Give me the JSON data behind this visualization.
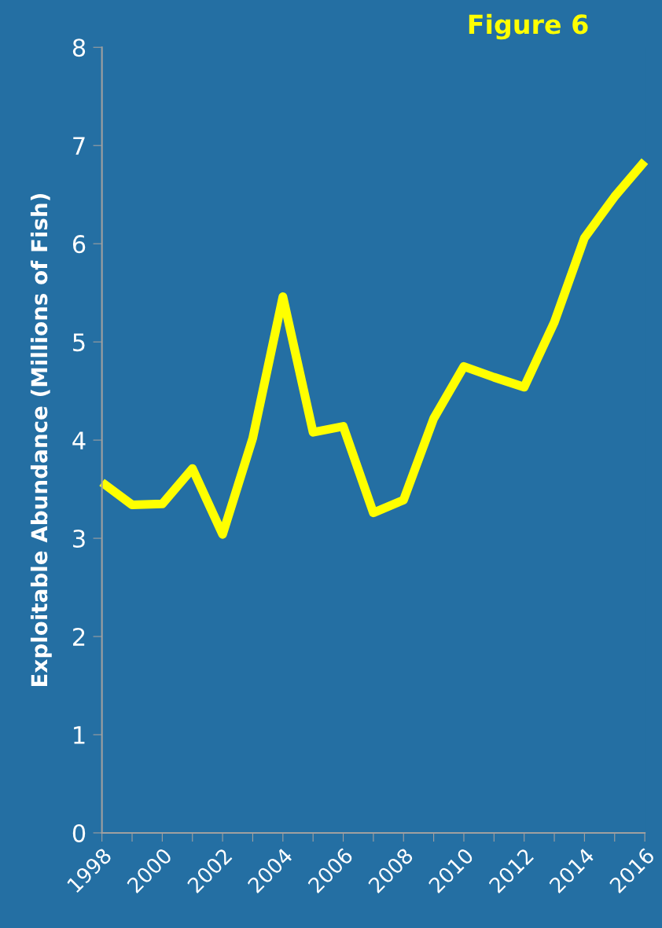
{
  "chart_data": {
    "type": "line",
    "title": "Figure 6",
    "ylabel": "Exploitable Abundance (Millions of Fish)",
    "categories": [
      "1998",
      null,
      "2000",
      null,
      "2002",
      null,
      "2004",
      null,
      "2006",
      null,
      "2008",
      null,
      "2010",
      null,
      "2012",
      null,
      "2014",
      null,
      "2016"
    ],
    "series": [
      {
        "color": "#ffff00",
        "values": [
          3.57,
          3.34,
          3.35,
          3.71,
          3.04,
          4.02,
          5.46,
          4.08,
          4.14,
          3.26,
          3.39,
          4.22,
          4.75,
          4.64,
          4.54,
          5.2,
          6.06,
          6.48,
          6.84
        ]
      }
    ],
    "ylim": [
      0,
      8
    ],
    "yticks": [
      0,
      1,
      2,
      3,
      4,
      5,
      6,
      7,
      8
    ],
    "grid": false,
    "legend": false,
    "marker": "none",
    "line_style": "solid"
  }
}
